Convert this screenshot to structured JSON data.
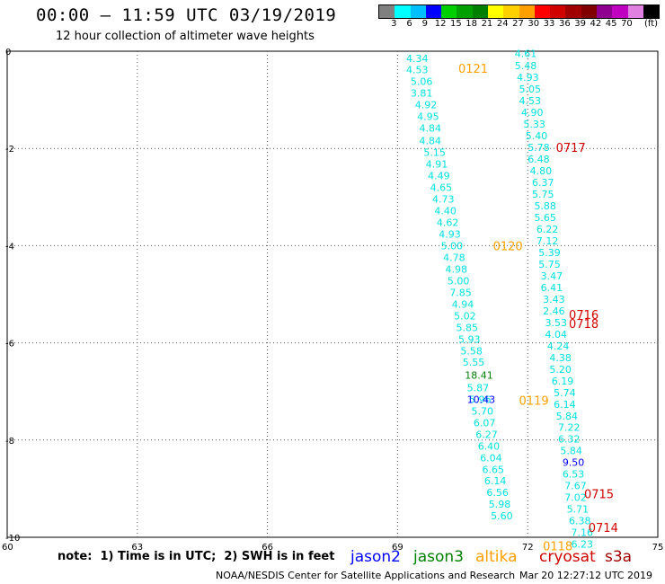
{
  "header": {
    "title": "00:00 — 11:59 UTC 03/19/2019",
    "subtitle": "12 hour collection of altimeter wave heights"
  },
  "colorbar": {
    "colors": [
      "#808080",
      "#00ffff",
      "#00bfff",
      "#0000ff",
      "#00d000",
      "#00a000",
      "#008000",
      "#ffff00",
      "#ffd000",
      "#ffa000",
      "#ff0000",
      "#d00000",
      "#a00000",
      "#800000",
      "#900090",
      "#c000c0",
      "#e080e0",
      "#000000"
    ],
    "labels": [
      "3",
      "6",
      "9",
      "12",
      "15",
      "18",
      "21",
      "24",
      "27",
      "30",
      "33",
      "36",
      "39",
      "42",
      "45",
      "70"
    ],
    "unit": "(ft)"
  },
  "note": "note:  1) Time is in UTC;  2) SWH is in feet",
  "legend": [
    {
      "name": "jason2",
      "color": "#0000ff"
    },
    {
      "name": "jason3",
      "color": "#008000"
    },
    {
      "name": "altika",
      "color": "#ffa000"
    },
    {
      "name": "cryosat",
      "color": "#d00000"
    },
    {
      "name": "s3a",
      "color": "#a00000"
    }
  ],
  "footer": {
    "left": "NOAA/NESDIS Center for Satellite Applications and Research",
    "right": "Mar 20 12:27:12 UTC 2019"
  },
  "chart_data": {
    "type": "scatter",
    "title": "00:00 — 11:59 UTC 03/19/2019",
    "subtitle": "12 hour collection of altimeter wave heights",
    "xlabel": "",
    "ylabel": "",
    "xlim": [
      60,
      75
    ],
    "ylim": [
      -10,
      0
    ],
    "x_ticks": [
      "60",
      "63",
      "66",
      "69",
      "72",
      "75"
    ],
    "y_ticks": [
      "0",
      "-2",
      "-4",
      "-6",
      "-8",
      "-10"
    ],
    "grid": true,
    "series": [
      {
        "name": "altika",
        "color": "#00e0e0",
        "points": [
          [
            69.2,
            -0.15,
            "4.34"
          ],
          [
            69.2,
            -0.38,
            "4.53"
          ],
          [
            69.3,
            -0.62,
            "5.06"
          ],
          [
            69.3,
            -0.86,
            "3.81"
          ],
          [
            69.4,
            -1.1,
            "4.92"
          ],
          [
            69.45,
            -1.34,
            "4.95"
          ],
          [
            69.5,
            -1.58,
            "4.84"
          ],
          [
            69.5,
            -1.84,
            "4.84"
          ],
          [
            69.6,
            -2.08,
            "5.15"
          ],
          [
            69.65,
            -2.32,
            "4.91"
          ],
          [
            69.7,
            -2.56,
            "4.49"
          ],
          [
            69.75,
            -2.8,
            "4.65"
          ],
          [
            69.8,
            -3.04,
            "4.73"
          ],
          [
            69.85,
            -3.28,
            "4.40"
          ],
          [
            69.9,
            -3.52,
            "4.62"
          ],
          [
            69.95,
            -3.76,
            "4.93"
          ],
          [
            70.0,
            -4.0,
            "5.00"
          ],
          [
            70.05,
            -4.24,
            "4.78"
          ],
          [
            70.1,
            -4.48,
            "4.98"
          ],
          [
            70.15,
            -4.72,
            "5.00"
          ],
          [
            70.2,
            -4.96,
            "7.85"
          ],
          [
            70.25,
            -5.2,
            "4.94"
          ],
          [
            70.3,
            -5.44,
            "5.02"
          ],
          [
            70.35,
            -5.68,
            "5.85"
          ],
          [
            70.4,
            -5.92,
            "5.93"
          ],
          [
            70.45,
            -6.16,
            "5.58"
          ],
          [
            70.5,
            -6.4,
            "5.55"
          ],
          [
            70.65,
            -7.16,
            "5.96"
          ],
          [
            70.7,
            -7.4,
            "5.70"
          ],
          [
            70.75,
            -7.64,
            "6.07"
          ],
          [
            70.8,
            -7.88,
            "6.27"
          ],
          [
            70.85,
            -8.12,
            "6.40"
          ],
          [
            70.9,
            -8.36,
            "6.04"
          ],
          [
            70.95,
            -8.6,
            "6.65"
          ],
          [
            71.0,
            -8.84,
            "6.14"
          ],
          [
            71.05,
            -9.08,
            "6.56"
          ],
          [
            71.1,
            -9.32,
            "5.98"
          ],
          [
            71.15,
            -9.56,
            "5.60"
          ]
        ]
      },
      {
        "name": "jason3",
        "color": "#008000",
        "points": [
          [
            70.55,
            -6.66,
            "18.41"
          ]
        ]
      },
      {
        "name": "altika-2",
        "color": "#00e0e0",
        "points": [
          [
            70.6,
            -6.92,
            "5.87"
          ]
        ]
      },
      {
        "name": "jason2",
        "color": "#0000ff",
        "points": [
          [
            70.6,
            -7.16,
            "10.43"
          ]
        ]
      },
      {
        "name": "cryosat-track",
        "color": "#00e0e0",
        "points": [
          [
            71.7,
            -0.05,
            "4.61"
          ],
          [
            71.7,
            -0.3,
            "5.48"
          ],
          [
            71.75,
            -0.54,
            "4.93"
          ],
          [
            71.8,
            -0.78,
            "5.05"
          ],
          [
            71.8,
            -1.02,
            "4.53"
          ],
          [
            71.85,
            -1.26,
            "4.90"
          ],
          [
            71.9,
            -1.5,
            "5.33"
          ],
          [
            71.95,
            -1.74,
            "5.40"
          ],
          [
            72.0,
            -1.98,
            "5.78"
          ],
          [
            72.0,
            -2.22,
            "6.48"
          ],
          [
            72.05,
            -2.46,
            "4.80"
          ],
          [
            72.1,
            -2.7,
            "6.37"
          ],
          [
            72.1,
            -2.94,
            "5.75"
          ],
          [
            72.15,
            -3.18,
            "5.88"
          ],
          [
            72.15,
            -3.42,
            "5.65"
          ],
          [
            72.2,
            -3.66,
            "6.22"
          ],
          [
            72.2,
            -3.9,
            "7.12"
          ],
          [
            72.25,
            -4.14,
            "5.39"
          ],
          [
            72.25,
            -4.38,
            "5.75"
          ],
          [
            72.3,
            -4.62,
            "3.47"
          ],
          [
            72.3,
            -4.86,
            "6.41"
          ],
          [
            72.35,
            -5.1,
            "3.43"
          ],
          [
            72.35,
            -5.34,
            "2.46"
          ],
          [
            72.4,
            -5.58,
            "3.53"
          ],
          [
            72.4,
            -5.82,
            "4.04"
          ],
          [
            72.45,
            -6.06,
            "4.24"
          ],
          [
            72.5,
            -6.3,
            "4.38"
          ],
          [
            72.5,
            -6.54,
            "5.20"
          ],
          [
            72.55,
            -6.78,
            "6.19"
          ],
          [
            72.6,
            -7.02,
            "5.74"
          ],
          [
            72.6,
            -7.26,
            "6.14"
          ],
          [
            72.65,
            -7.5,
            "5.84"
          ],
          [
            72.7,
            -7.74,
            "7.22"
          ],
          [
            72.7,
            -7.98,
            "6.32"
          ],
          [
            72.75,
            -8.22,
            "5.84"
          ],
          [
            72.8,
            -8.7,
            "6.53"
          ],
          [
            72.85,
            -8.94,
            "7.67"
          ],
          [
            72.85,
            -9.18,
            "7.02"
          ],
          [
            72.9,
            -9.42,
            "5.71"
          ],
          [
            72.95,
            -9.66,
            "6.38"
          ],
          [
            73.0,
            -9.9,
            "7.16"
          ],
          [
            73.0,
            -10.14,
            "6.23"
          ]
        ]
      },
      {
        "name": "jason2-b",
        "color": "#0000ff",
        "points": [
          [
            72.8,
            -8.46,
            "9.50"
          ]
        ]
      }
    ],
    "pass_labels": [
      {
        "text": "0121",
        "x": 70.4,
        "y": -0.35,
        "color": "#ffa000"
      },
      {
        "text": "0717",
        "x": 72.65,
        "y": -1.98,
        "color": "#d00000"
      },
      {
        "text": "0120",
        "x": 71.2,
        "y": -4.0,
        "color": "#ffa000"
      },
      {
        "text": "0716",
        "x": 72.95,
        "y": -5.42,
        "color": "#d00000"
      },
      {
        "text": "0718",
        "x": 72.95,
        "y": -5.6,
        "color": "#d00000"
      },
      {
        "text": "0119",
        "x": 71.8,
        "y": -7.18,
        "color": "#ffa000"
      },
      {
        "text": "0715",
        "x": 73.3,
        "y": -9.1,
        "color": "#d00000"
      },
      {
        "text": "0714",
        "x": 73.4,
        "y": -9.8,
        "color": "#d00000"
      },
      {
        "text": "0118",
        "x": 72.35,
        "y": -10.18,
        "color": "#ffa000"
      }
    ]
  }
}
